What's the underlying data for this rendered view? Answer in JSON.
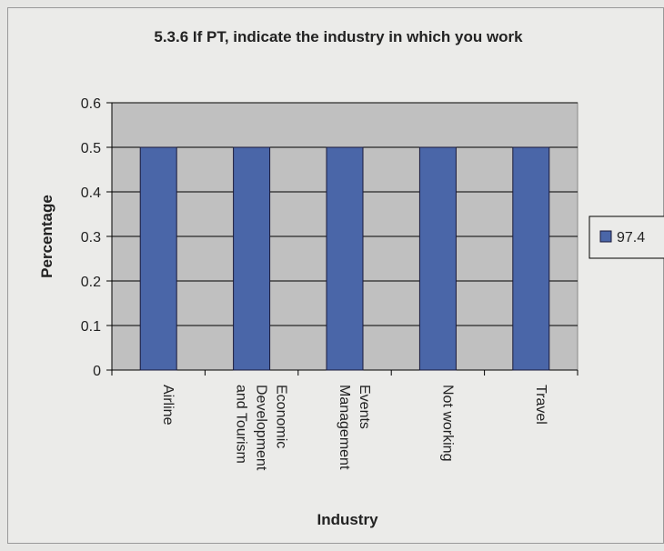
{
  "chart_data": {
    "type": "bar",
    "title": "5.3.6 If PT, indicate the industry in which you work",
    "x_label": "Industry",
    "y_label": "Percentage",
    "categories": [
      "Airline",
      "Economic Development and Tourism",
      "Events Management",
      "Not working",
      "Travel"
    ],
    "series": [
      {
        "name": "97.4",
        "color": "#4a66a8",
        "values": [
          0.5,
          0.5,
          0.5,
          0.5,
          0.5
        ]
      }
    ],
    "ylim": [
      0,
      0.6
    ],
    "yticks": [
      0,
      0.1,
      0.2,
      0.3,
      0.4,
      0.5,
      0.6
    ],
    "grid": true,
    "legend": "right"
  }
}
